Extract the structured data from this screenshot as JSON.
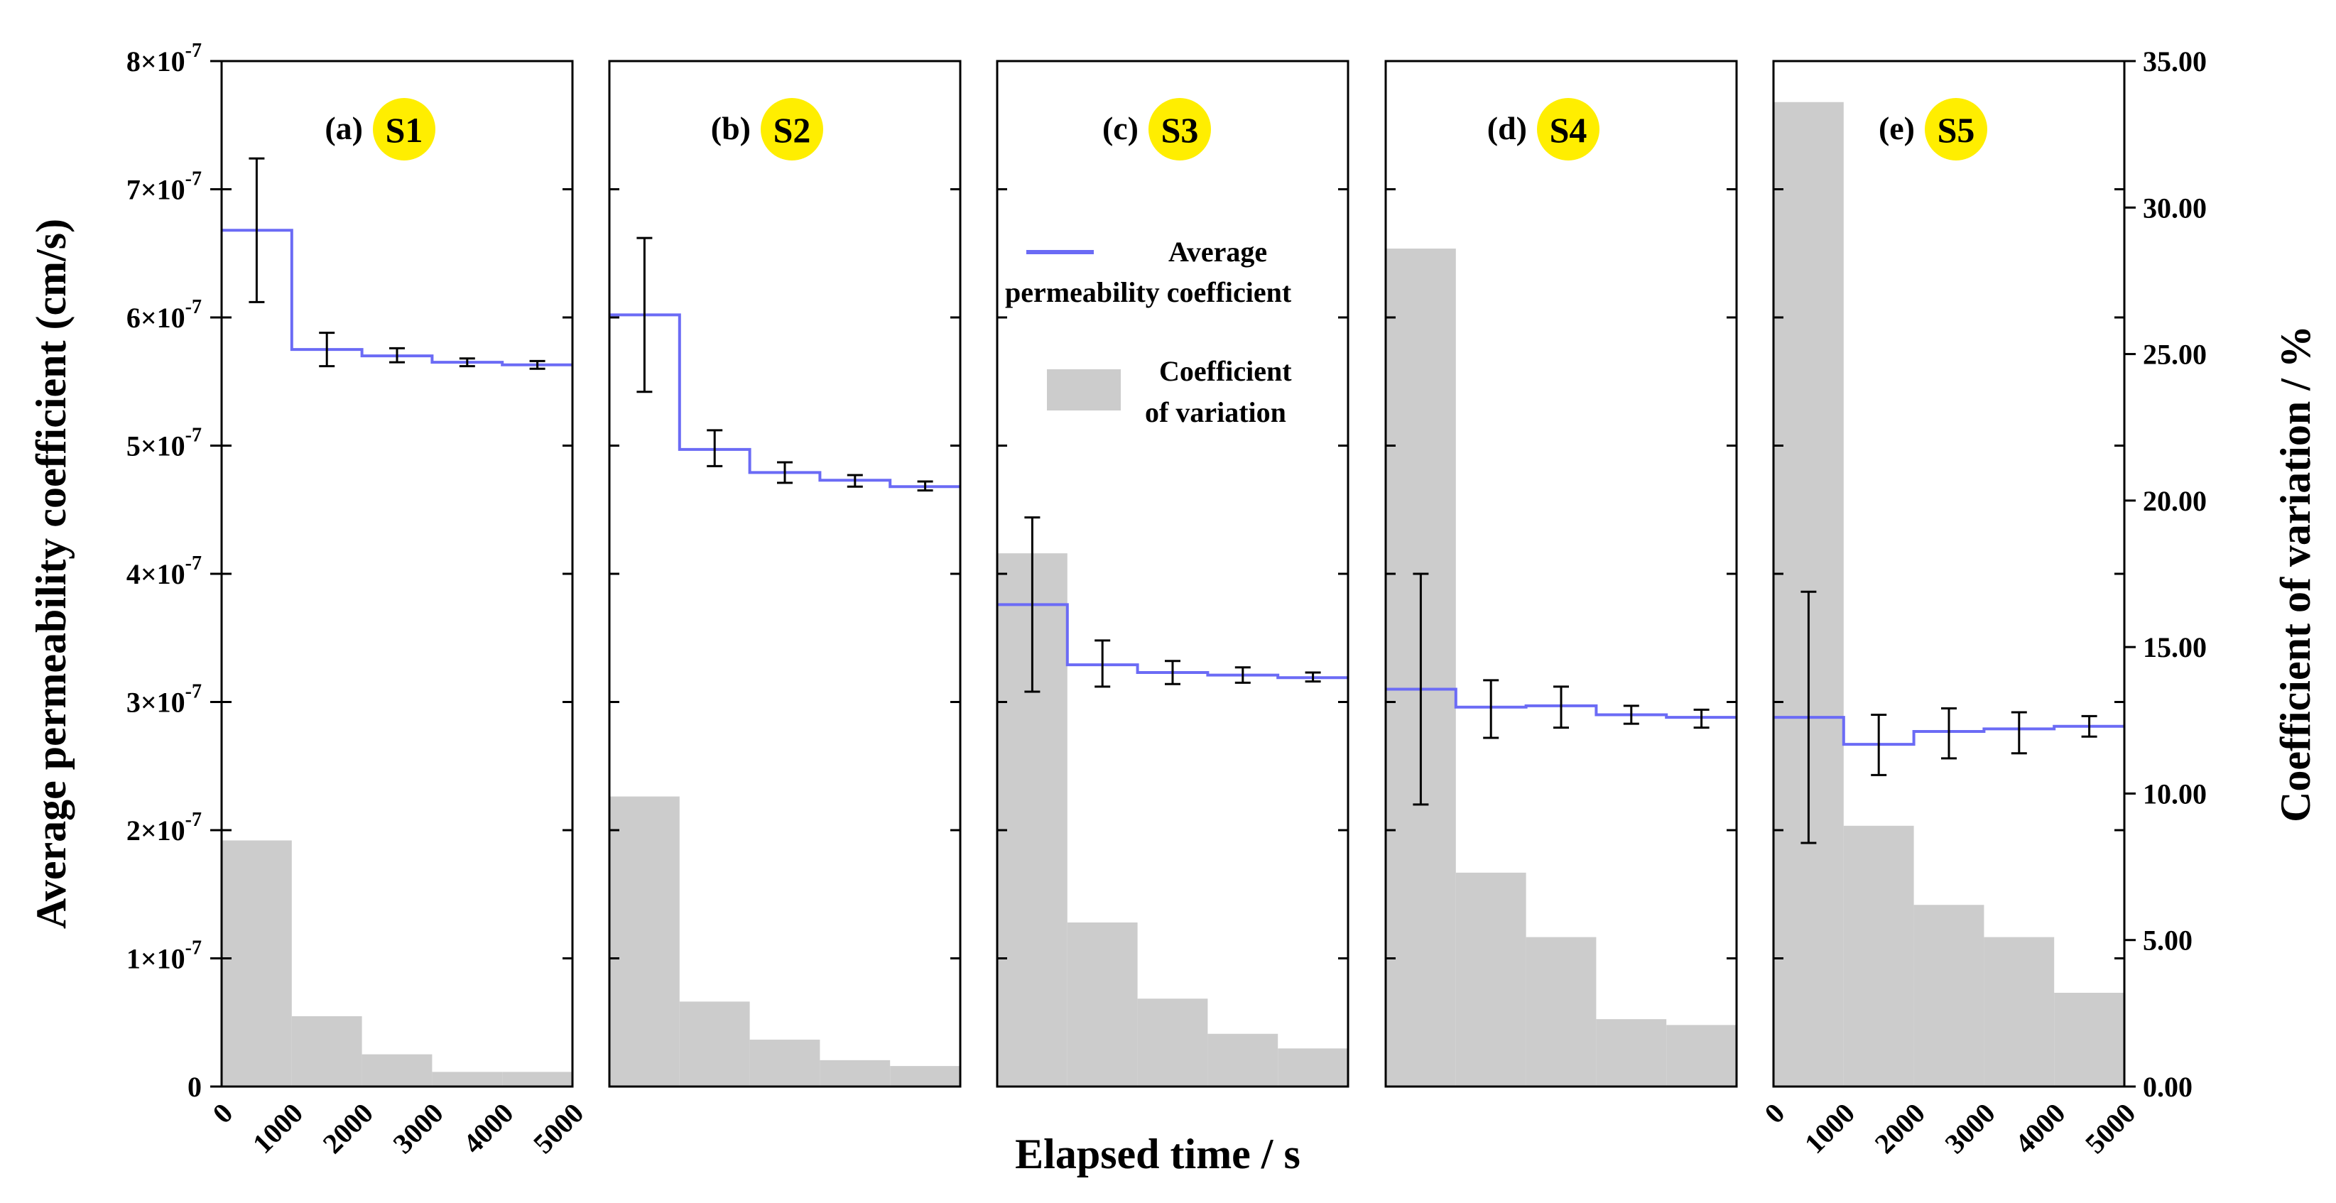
{
  "chart_data": {
    "type": "bar+line",
    "xlabel": "Elapsed time / s",
    "ylabel_left": "Average permeability coefficient (cm/s)",
    "ylabel_right": "Coefficient of variation / %",
    "x_ticks": [
      "0",
      "1000",
      "2000",
      "3000",
      "4000",
      "5000"
    ],
    "xlim": [
      0,
      5000
    ],
    "ylim_left": [
      0,
      8e-07
    ],
    "ylim_right": [
      0,
      35
    ],
    "y_left_ticks": [
      {
        "mantissa": "",
        "exponent": "",
        "plain": "0",
        "value": 0
      },
      {
        "mantissa": "1×10",
        "exponent": "-7",
        "value": 1e-07
      },
      {
        "mantissa": "2×10",
        "exponent": "-7",
        "value": 2e-07
      },
      {
        "mantissa": "3×10",
        "exponent": "-7",
        "value": 3e-07
      },
      {
        "mantissa": "4×10",
        "exponent": "-7",
        "value": 4e-07
      },
      {
        "mantissa": "5×10",
        "exponent": "-7",
        "value": 5e-07
      },
      {
        "mantissa": "6×10",
        "exponent": "-7",
        "value": 6e-07
      },
      {
        "mantissa": "7×10",
        "exponent": "-7",
        "value": 7e-07
      },
      {
        "mantissa": "8×10",
        "exponent": "-7",
        "value": 8e-07
      }
    ],
    "y_right_ticks": [
      "0.00",
      "5.00",
      "10.00",
      "15.00",
      "20.00",
      "25.00",
      "30.00",
      "35.00"
    ],
    "y_right_tick_values": [
      0,
      5,
      10,
      15,
      20,
      25,
      30,
      35
    ],
    "legend": {
      "line_label_1": "Average",
      "line_label_2": "permeability coefficient",
      "bar_label_1": "Coefficient",
      "bar_label_2": "of variation"
    },
    "colors": {
      "line": "#6b6bf5",
      "bar": "#cccccc",
      "badge": "#ffee00",
      "axis": "#000000"
    },
    "bins": [
      [
        0,
        1000
      ],
      [
        1000,
        2000
      ],
      [
        2000,
        3000
      ],
      [
        3000,
        4000
      ],
      [
        4000,
        5000
      ]
    ],
    "panels": [
      {
        "letter": "(a)",
        "label": "S1",
        "cv": [
          8.4,
          2.4,
          1.1,
          0.5,
          0.5
        ],
        "avg": [
          6.68e-07,
          5.75e-07,
          5.7e-07,
          5.65e-07,
          5.63e-07
        ],
        "err_low": [
          6.12e-07,
          5.62e-07,
          5.65e-07,
          5.62e-07,
          5.6e-07
        ],
        "err_high": [
          7.24e-07,
          5.88e-07,
          5.76e-07,
          5.68e-07,
          5.66e-07
        ]
      },
      {
        "letter": "(b)",
        "label": "S2",
        "cv": [
          9.9,
          2.9,
          1.6,
          0.9,
          0.7
        ],
        "avg": [
          6.02e-07,
          4.97e-07,
          4.79e-07,
          4.73e-07,
          4.68e-07
        ],
        "err_low": [
          5.42e-07,
          4.84e-07,
          4.71e-07,
          4.68e-07,
          4.65e-07
        ],
        "err_high": [
          6.62e-07,
          5.12e-07,
          4.87e-07,
          4.77e-07,
          4.72e-07
        ]
      },
      {
        "letter": "(c)",
        "label": "S3",
        "cv": [
          18.2,
          5.6,
          3.0,
          1.8,
          1.3
        ],
        "avg": [
          3.76e-07,
          3.29e-07,
          3.23e-07,
          3.21e-07,
          3.19e-07
        ],
        "err_low": [
          3.08e-07,
          3.12e-07,
          3.14e-07,
          3.15e-07,
          3.16e-07
        ],
        "err_high": [
          4.44e-07,
          3.48e-07,
          3.32e-07,
          3.27e-07,
          3.23e-07
        ]
      },
      {
        "letter": "(d)",
        "label": "S4",
        "cv": [
          28.6,
          7.3,
          5.1,
          2.3,
          2.1
        ],
        "avg": [
          3.1e-07,
          2.96e-07,
          2.97e-07,
          2.9e-07,
          2.88e-07
        ],
        "err_low": [
          2.2e-07,
          2.72e-07,
          2.8e-07,
          2.83e-07,
          2.8e-07
        ],
        "err_high": [
          4e-07,
          3.17e-07,
          3.12e-07,
          2.97e-07,
          2.94e-07
        ]
      },
      {
        "letter": "(e)",
        "label": "S5",
        "cv": [
          33.6,
          8.9,
          6.2,
          5.1,
          3.2
        ],
        "avg": [
          2.88e-07,
          2.67e-07,
          2.77e-07,
          2.79e-07,
          2.81e-07
        ],
        "err_low": [
          1.9e-07,
          2.43e-07,
          2.56e-07,
          2.6e-07,
          2.73e-07
        ],
        "err_high": [
          3.86e-07,
          2.9e-07,
          2.95e-07,
          2.92e-07,
          2.89e-07
        ]
      }
    ]
  }
}
